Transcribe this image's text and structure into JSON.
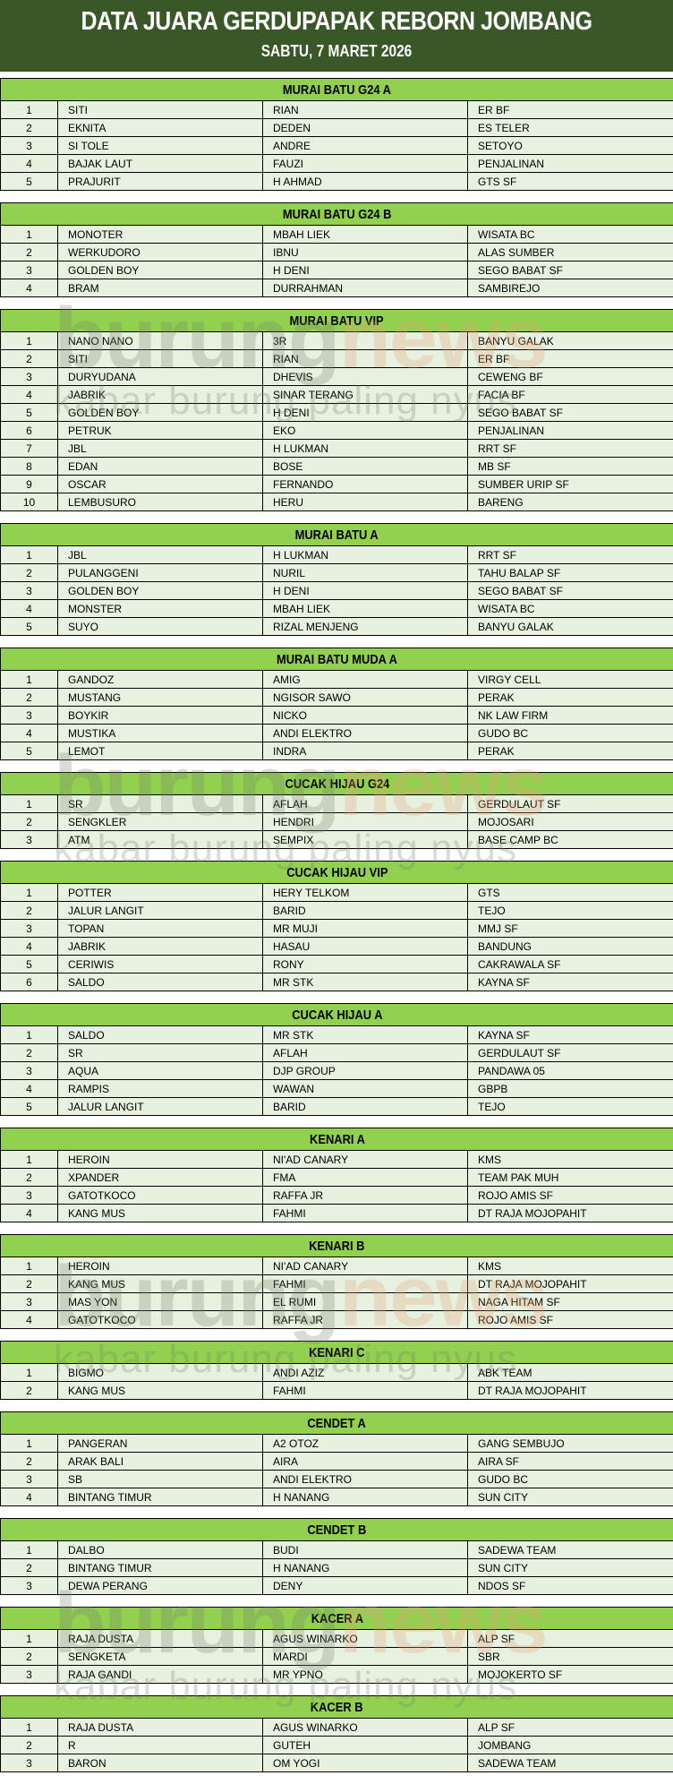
{
  "header": {
    "title": "DATA JUARA GERDUPAPAK REBORN JOMBANG",
    "subtitle": "SABTU, 7 MARET 2026"
  },
  "watermark": {
    "brand_a": "burung",
    "brand_b": "news",
    "tagline": "kabar burung paling nyus"
  },
  "colors": {
    "banner": "#3a5727",
    "section_header": "#92d050",
    "row": "#e2efda",
    "border": "#000000"
  },
  "sections": [
    {
      "title": "MURAI BATU G24 A",
      "rows": [
        [
          "1",
          "SITI",
          "RIAN",
          "ER BF"
        ],
        [
          "2",
          "EKNITA",
          "DEDEN",
          "ES TELER"
        ],
        [
          "3",
          "SI TOLE",
          "ANDRE",
          "SETOYO"
        ],
        [
          "4",
          "BAJAK LAUT",
          "FAUZI",
          "PENJALINAN"
        ],
        [
          "5",
          "PRAJURIT",
          "H AHMAD",
          "GTS SF"
        ]
      ]
    },
    {
      "title": "MURAI BATU G24 B",
      "rows": [
        [
          "1",
          "MONOTER",
          "MBAH LIEK",
          "WISATA BC"
        ],
        [
          "2",
          "WERKUDORO",
          "IBNU",
          "ALAS SUMBER"
        ],
        [
          "3",
          "GOLDEN BOY",
          "H DENI",
          "SEGO BABAT SF"
        ],
        [
          "4",
          "BRAM",
          "DURRAHMAN",
          "SAMBIREJO"
        ]
      ]
    },
    {
      "title": "MURAI BATU VIP",
      "rows": [
        [
          "1",
          "NANO NANO",
          "3R",
          "BANYU GALAK"
        ],
        [
          "2",
          "SITI",
          "RIAN",
          "ER BF"
        ],
        [
          "3",
          "DURYUDANA",
          "DHEVIS",
          "CEWENG BF"
        ],
        [
          "4",
          "JABRIK",
          "SINAR TERANG",
          "FACIA BF"
        ],
        [
          "5",
          "GOLDEN BOY",
          "H DENI",
          "SEGO BABAT SF"
        ],
        [
          "6",
          "PETRUK",
          "EKO",
          "PENJALINAN"
        ],
        [
          "7",
          "JBL",
          "H LUKMAN",
          "RRT SF"
        ],
        [
          "8",
          "EDAN",
          "BOSE",
          "MB SF"
        ],
        [
          "9",
          "OSCAR",
          "FERNANDO",
          "SUMBER URIP SF"
        ],
        [
          "10",
          "LEMBUSURO",
          "HERU",
          "BARENG"
        ]
      ]
    },
    {
      "title": "MURAI BATU A",
      "rows": [
        [
          "1",
          "JBL",
          "H LUKMAN",
          "RRT SF"
        ],
        [
          "2",
          "PULANGGENI",
          "NURIL",
          "TAHU BALAP SF"
        ],
        [
          "3",
          "GOLDEN BOY",
          "H DENI",
          "SEGO BABAT SF"
        ],
        [
          "4",
          "MONSTER",
          "MBAH LIEK",
          "WISATA BC"
        ],
        [
          "5",
          "SUYO",
          "RIZAL MENJENG",
          "BANYU GALAK"
        ]
      ]
    },
    {
      "title": "MURAI BATU MUDA A",
      "rows": [
        [
          "1",
          "GANDOZ",
          "AMIG",
          "VIRGY CELL"
        ],
        [
          "2",
          "MUSTANG",
          "NGISOR SAWO",
          "PERAK"
        ],
        [
          "3",
          "BOYKIR",
          "NICKO",
          "NK LAW FIRM"
        ],
        [
          "4",
          "MUSTIKA",
          "ANDI ELEKTRO",
          "GUDO BC"
        ],
        [
          "5",
          "LEMOT",
          "INDRA",
          "PERAK"
        ]
      ]
    },
    {
      "title": "CUCAK HIJAU G24",
      "rows": [
        [
          "1",
          "SR",
          "AFLAH",
          "GERDULAUT SF"
        ],
        [
          "2",
          "SENGKLER",
          "HENDRI",
          "MOJOSARI"
        ],
        [
          "3",
          "ATM",
          "SEMPIX",
          "BASE CAMP BC"
        ]
      ]
    },
    {
      "title": "CUCAK HIJAU VIP",
      "rows": [
        [
          "1",
          "POTTER",
          "HERY TELKOM",
          "GTS"
        ],
        [
          "2",
          "JALUR LANGIT",
          "BARID",
          "TEJO"
        ],
        [
          "3",
          "TOPAN",
          "MR MUJI",
          "MMJ SF"
        ],
        [
          "4",
          "JABRIK",
          "HASAU",
          "BANDUNG"
        ],
        [
          "5",
          "CERIWIS",
          "RONY",
          "CAKRAWALA SF"
        ],
        [
          "6",
          "SALDO",
          "MR STK",
          "KAYNA SF"
        ]
      ]
    },
    {
      "title": "CUCAK HIJAU A",
      "rows": [
        [
          "1",
          "SALDO",
          "MR STK",
          "KAYNA SF"
        ],
        [
          "2",
          "SR",
          "AFLAH",
          "GERDULAUT SF"
        ],
        [
          "3",
          "AQUA",
          "DJP GROUP",
          "PANDAWA 05"
        ],
        [
          "4",
          "RAMPIS",
          "WAWAN",
          "GBPB"
        ],
        [
          "5",
          "JALUR LANGIT",
          "BARID",
          "TEJO"
        ]
      ]
    },
    {
      "title": "KENARI A",
      "rows": [
        [
          "1",
          "HEROIN",
          "NI'AD CANARY",
          "KMS"
        ],
        [
          "2",
          "XPANDER",
          "FMA",
          "TEAM PAK MUH"
        ],
        [
          "3",
          "GATOTKOCO",
          "RAFFA JR",
          "ROJO AMIS SF"
        ],
        [
          "4",
          "KANG MUS",
          "FAHMI",
          "DT RAJA MOJOPAHIT"
        ]
      ]
    },
    {
      "title": "KENARI B",
      "rows": [
        [
          "1",
          "HEROIN",
          "NI'AD CANARY",
          "KMS"
        ],
        [
          "2",
          "KANG MUS",
          "FAHMI",
          "DT RAJA MOJOPAHIT"
        ],
        [
          "3",
          "MAS YON",
          "EL RUMI",
          "NAGA HITAM SF"
        ],
        [
          "4",
          "GATOTKOCO",
          "RAFFA JR",
          "ROJO AMIS SF"
        ]
      ]
    },
    {
      "title": "KENARI C",
      "rows": [
        [
          "1",
          "BIGMO",
          "ANDI AZIZ",
          "ABK TEAM"
        ],
        [
          "2",
          "KANG MUS",
          "FAHMI",
          "DT RAJA MOJOPAHIT"
        ]
      ]
    },
    {
      "title": "CENDET A",
      "rows": [
        [
          "1",
          "PANGERAN",
          "A2 OTOZ",
          "GANG SEMBUJO"
        ],
        [
          "2",
          "ARAK BALI",
          "AIRA",
          "AIRA SF"
        ],
        [
          "3",
          "SB",
          "ANDI ELEKTRO",
          "GUDO BC"
        ],
        [
          "4",
          "BINTANG TIMUR",
          "H NANANG",
          "SUN CITY"
        ]
      ]
    },
    {
      "title": "CENDET B",
      "rows": [
        [
          "1",
          "DALBO",
          "BUDI",
          "SADEWA TEAM"
        ],
        [
          "2",
          "BINTANG TIMUR",
          "H NANANG",
          "SUN CITY"
        ],
        [
          "3",
          "DEWA PERANG",
          "DENY",
          "NDOS SF"
        ]
      ]
    },
    {
      "title": "KACER A",
      "rows": [
        [
          "1",
          "RAJA DUSTA",
          "AGUS WINARKO",
          "ALP SF"
        ],
        [
          "2",
          "SENGKETA",
          "MARDI",
          "SBR"
        ],
        [
          "3",
          "RAJA GANDI",
          "MR YPNO",
          "MOJOKERTO SF"
        ]
      ]
    },
    {
      "title": "KACER B",
      "rows": [
        [
          "1",
          "RAJA DUSTA",
          "AGUS WINARKO",
          "ALP SF"
        ],
        [
          "2",
          "R",
          "GUTEH",
          "JOMBANG"
        ],
        [
          "3",
          "BARON",
          "OM YOGI",
          "SADEWA TEAM"
        ]
      ]
    }
  ]
}
